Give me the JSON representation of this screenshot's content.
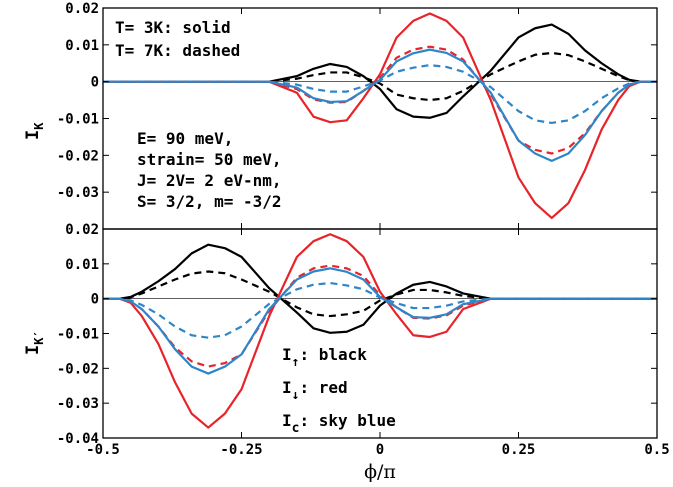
{
  "chart_data": [
    {
      "type": "line",
      "panel": "top",
      "ylabel_main": "I",
      "ylabel_sub": "K",
      "xlim": [
        -0.5,
        0.5
      ],
      "ylim": [
        -0.04,
        0.02
      ],
      "x_ticks": [
        -0.5,
        -0.25,
        0,
        0.25,
        0.5
      ],
      "x_tick_labels": [
        "-0.5",
        "-0.25",
        "0",
        "0.25",
        "0.5"
      ],
      "y_ticks": [
        -0.03,
        -0.02,
        -0.01,
        0,
        0.01,
        0.02
      ],
      "y_tick_labels": [
        "-0.03",
        "-0.02",
        "-0.01",
        "0",
        "0.01",
        "0.02"
      ],
      "legend_lines": [
        "T= 3K: solid",
        "T= 7K: dashed"
      ],
      "param_lines": [
        "E= 90 meV,",
        "strain= 50 meV,",
        "J= 2V= 2 eV-nm,",
        "S= 3/2, m= -3/2"
      ],
      "x": [
        -0.5,
        -0.45,
        -0.4,
        -0.35,
        -0.3,
        -0.25,
        -0.2,
        -0.15,
        -0.12,
        -0.09,
        -0.06,
        -0.03,
        0,
        0.03,
        0.06,
        0.09,
        0.12,
        0.15,
        0.2,
        0.25,
        0.28,
        0.31,
        0.34,
        0.37,
        0.4,
        0.43,
        0.45,
        0.47,
        0.5
      ],
      "series": [
        {
          "color": "#000000",
          "dash": false,
          "values": [
            0,
            0,
            0,
            0,
            0,
            0,
            0,
            0.0015,
            0.0035,
            0.0048,
            0.004,
            0.0015,
            -0.002,
            -0.0075,
            -0.0095,
            -0.0098,
            -0.0085,
            -0.004,
            0.003,
            0.012,
            0.0145,
            0.0155,
            0.013,
            0.0085,
            0.005,
            0.002,
            0.0005,
            0,
            0
          ]
        },
        {
          "color": "#000000",
          "dash": true,
          "values": [
            0,
            0,
            0,
            0,
            0,
            0,
            0,
            0.0008,
            0.0018,
            0.0025,
            0.0025,
            0.0012,
            -0.0005,
            -0.0035,
            -0.0045,
            -0.005,
            -0.0045,
            -0.0025,
            0.002,
            0.0055,
            0.0073,
            0.0078,
            0.0072,
            0.0055,
            0.0035,
            0.0015,
            0.0004,
            0,
            0
          ]
        },
        {
          "color": "#e8232a",
          "dash": false,
          "values": [
            0,
            0,
            0,
            0,
            0,
            0,
            0,
            -0.003,
            -0.0095,
            -0.011,
            -0.0105,
            -0.0045,
            0.002,
            0.012,
            0.0165,
            0.0185,
            0.0165,
            0.012,
            -0.005,
            -0.026,
            -0.033,
            -0.037,
            -0.033,
            -0.024,
            -0.013,
            -0.005,
            -0.0012,
            0,
            0
          ]
        },
        {
          "color": "#e8232a",
          "dash": true,
          "values": [
            0,
            0,
            0,
            0,
            0,
            0,
            0,
            -0.002,
            -0.0048,
            -0.0057,
            -0.0055,
            -0.0025,
            0.001,
            0.0065,
            0.0087,
            0.0095,
            0.0087,
            0.006,
            -0.0035,
            -0.016,
            -0.0185,
            -0.0195,
            -0.018,
            -0.014,
            -0.008,
            -0.003,
            -0.0008,
            0,
            0
          ]
        },
        {
          "color": "#2e86c8",
          "dash": false,
          "values": [
            0,
            0,
            0,
            0,
            0,
            0,
            0,
            -0.0016,
            -0.0045,
            -0.0055,
            -0.0053,
            -0.0025,
            0.0005,
            0.0055,
            0.0077,
            0.0087,
            0.0078,
            0.0055,
            -0.003,
            -0.016,
            -0.0195,
            -0.0215,
            -0.0195,
            -0.0145,
            -0.008,
            -0.003,
            -0.0008,
            0,
            0
          ]
        },
        {
          "color": "#2e86c8",
          "dash": true,
          "values": [
            0,
            0,
            0,
            0,
            0,
            0,
            0,
            -0.0008,
            -0.002,
            -0.0027,
            -0.0027,
            -0.0013,
            0.0003,
            0.0027,
            0.0038,
            0.0045,
            0.004,
            0.0027,
            -0.0015,
            -0.008,
            -0.0105,
            -0.0112,
            -0.0105,
            -0.008,
            -0.0045,
            -0.0018,
            -0.0005,
            0,
            0
          ]
        }
      ]
    },
    {
      "type": "line",
      "panel": "bottom",
      "ylabel_main": "I",
      "ylabel_sub": "K′",
      "xlabel": "ϕ/π",
      "xlim": [
        -0.5,
        0.5
      ],
      "ylim": [
        -0.04,
        0.02
      ],
      "x_ticks": [
        -0.5,
        -0.25,
        0,
        0.25,
        0.5
      ],
      "x_tick_labels": [
        "-0.5",
        "-0.25",
        "0",
        "0.25",
        "0.5"
      ],
      "y_ticks": [
        -0.04,
        -0.03,
        -0.02,
        -0.01,
        0,
        0.01,
        0.02
      ],
      "y_tick_labels": [
        "-0.04",
        "-0.03",
        "-0.02",
        "-0.01",
        "0",
        "0.01",
        "0.02"
      ],
      "legend_items": [
        {
          "base": "I",
          "sub": "↑",
          "text": ": black"
        },
        {
          "base": "I",
          "sub": "↓",
          "text": ": red"
        },
        {
          "base": "I",
          "sub": "c",
          "text": ": sky blue"
        }
      ],
      "x": [
        -0.5,
        -0.47,
        -0.45,
        -0.43,
        -0.4,
        -0.37,
        -0.34,
        -0.31,
        -0.28,
        -0.25,
        -0.2,
        -0.15,
        -0.12,
        -0.09,
        -0.06,
        -0.03,
        0,
        0.03,
        0.06,
        0.09,
        0.12,
        0.15,
        0.2,
        0.25,
        0.3,
        0.35,
        0.4,
        0.45,
        0.5
      ],
      "series": [
        {
          "color": "#000000",
          "dash": false,
          "values": [
            0,
            0,
            0.0005,
            0.002,
            0.005,
            0.0085,
            0.013,
            0.0155,
            0.0145,
            0.012,
            0.003,
            -0.004,
            -0.0085,
            -0.0098,
            -0.0095,
            -0.0075,
            -0.002,
            0.0015,
            0.004,
            0.0048,
            0.0035,
            0.0015,
            0,
            0,
            0,
            0,
            0,
            0,
            0
          ]
        },
        {
          "color": "#000000",
          "dash": true,
          "values": [
            0,
            0,
            0.0004,
            0.0015,
            0.0035,
            0.0055,
            0.0072,
            0.0078,
            0.0073,
            0.0055,
            0.002,
            -0.0025,
            -0.0045,
            -0.005,
            -0.0045,
            -0.0035,
            -0.0005,
            0.0012,
            0.0025,
            0.0025,
            0.0018,
            0.0008,
            0,
            0,
            0,
            0,
            0,
            0,
            0
          ]
        },
        {
          "color": "#e8232a",
          "dash": false,
          "values": [
            0,
            0,
            -0.0012,
            -0.005,
            -0.013,
            -0.024,
            -0.033,
            -0.037,
            -0.033,
            -0.026,
            -0.005,
            0.012,
            0.0165,
            0.0185,
            0.0165,
            0.012,
            0.002,
            -0.0045,
            -0.0105,
            -0.011,
            -0.0095,
            -0.003,
            0,
            0,
            0,
            0,
            0,
            0,
            0
          ]
        },
        {
          "color": "#e8232a",
          "dash": true,
          "values": [
            0,
            0,
            -0.0008,
            -0.003,
            -0.008,
            -0.014,
            -0.018,
            -0.0195,
            -0.0185,
            -0.016,
            -0.0035,
            0.006,
            0.0087,
            0.0095,
            0.0087,
            0.0065,
            0.001,
            -0.0025,
            -0.0055,
            -0.0057,
            -0.0048,
            -0.002,
            0,
            0,
            0,
            0,
            0,
            0,
            0
          ]
        },
        {
          "color": "#2e86c8",
          "dash": false,
          "values": [
            0,
            0,
            -0.0008,
            -0.003,
            -0.008,
            -0.0145,
            -0.0195,
            -0.0215,
            -0.0195,
            -0.016,
            -0.003,
            0.0055,
            0.0078,
            0.0087,
            0.0077,
            0.0055,
            0.0005,
            -0.0025,
            -0.0053,
            -0.0055,
            -0.0045,
            -0.0016,
            0,
            0,
            0,
            0,
            0,
            0,
            0
          ]
        },
        {
          "color": "#2e86c8",
          "dash": true,
          "values": [
            0,
            0,
            -0.0005,
            -0.0018,
            -0.0045,
            -0.008,
            -0.0105,
            -0.0112,
            -0.0105,
            -0.008,
            -0.0015,
            0.0027,
            0.004,
            0.0045,
            0.0038,
            0.0027,
            0.0003,
            -0.0013,
            -0.0027,
            -0.0027,
            -0.002,
            -0.0008,
            0,
            0,
            0,
            0,
            0,
            0,
            0
          ]
        }
      ]
    }
  ]
}
